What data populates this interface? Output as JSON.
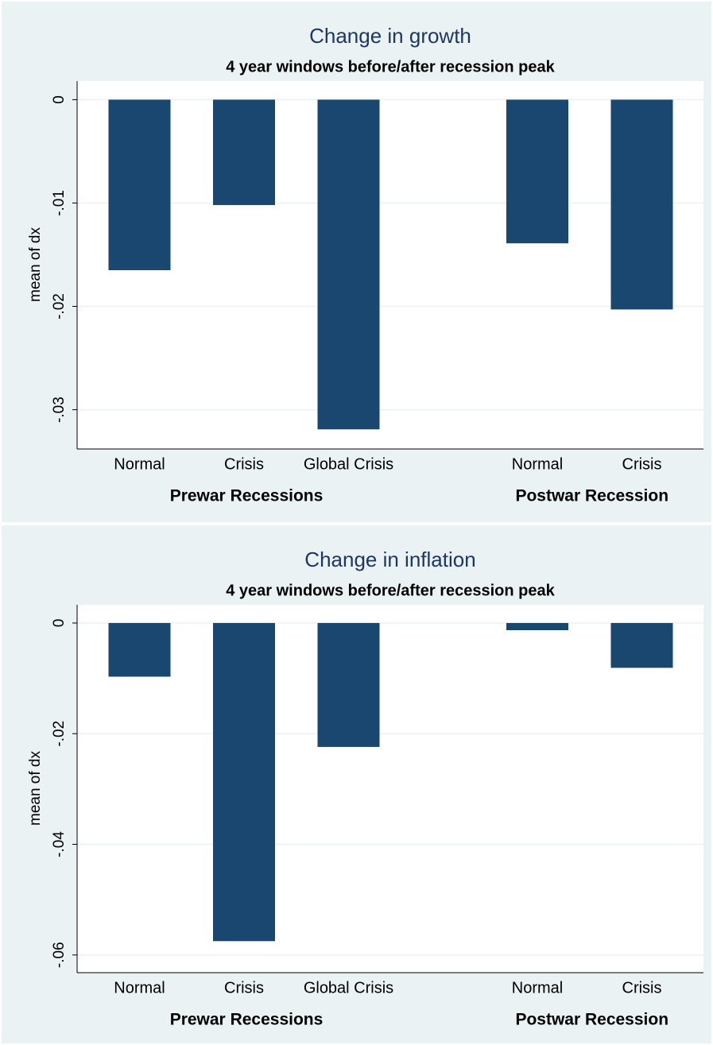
{
  "chart_data": [
    {
      "type": "bar",
      "title": "Change in growth",
      "subtitle": "4 year windows before/after recession peak",
      "y_label": "mean of dx",
      "color": "#1a476f",
      "grid": true,
      "ylim": [
        -0.0338,
        0.0018
      ],
      "yticks": [
        0,
        {
          "value": -0.01,
          "label": "-.01"
        },
        {
          "value": -0.02,
          "label": "-.02"
        },
        {
          "value": -0.03,
          "label": "-.03"
        }
      ],
      "groups": [
        {
          "label": "Prewar Recessions",
          "categories": [
            "Normal",
            "Crisis",
            "Global Crisis"
          ],
          "values": [
            -0.0165,
            -0.0102,
            -0.0319
          ]
        },
        {
          "label": "Postwar Recession",
          "categories": [
            "Normal",
            "Crisis"
          ],
          "values": [
            -0.0139,
            -0.0203
          ]
        }
      ]
    },
    {
      "type": "bar",
      "title": "Change in inflation",
      "subtitle": "4 year windows before/after recession peak",
      "y_label": "mean of dx",
      "color": "#1a476f",
      "grid": true,
      "ylim": [
        -0.0632,
        0.0033
      ],
      "yticks": [
        0,
        {
          "value": -0.02,
          "label": "-.02"
        },
        {
          "value": -0.04,
          "label": "-.04"
        },
        {
          "value": -0.06,
          "label": "-.06"
        }
      ],
      "groups": [
        {
          "label": "Prewar Recessions",
          "categories": [
            "Normal",
            "Crisis",
            "Global Crisis"
          ],
          "values": [
            -0.0097,
            -0.0575,
            -0.0224
          ]
        },
        {
          "label": "Postwar Recession",
          "categories": [
            "Normal",
            "Crisis"
          ],
          "values": [
            -0.0013,
            -0.0081
          ]
        }
      ]
    }
  ]
}
